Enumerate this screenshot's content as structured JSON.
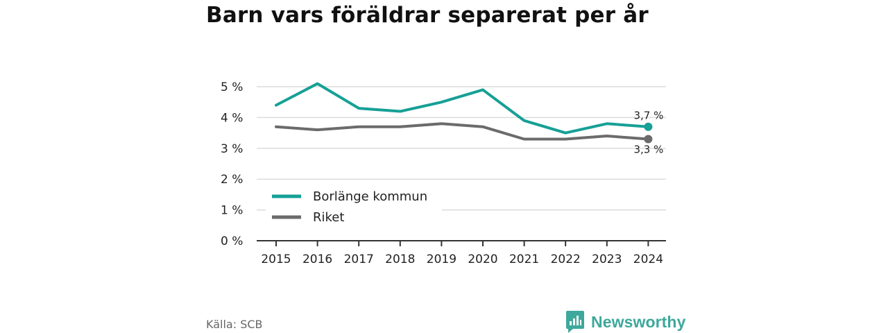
{
  "title": "Barn vars föräldrar separerat per år",
  "source": "Källa: SCB",
  "brand": {
    "name": "Newsworthy",
    "icon": "newsworthy-logo-icon",
    "color": "#3da89c"
  },
  "chart_data": {
    "type": "line",
    "title": "Barn vars föräldrar separerat per år",
    "x": [
      "2015",
      "2016",
      "2017",
      "2018",
      "2019",
      "2020",
      "2021",
      "2022",
      "2023",
      "2024"
    ],
    "series": [
      {
        "name": "Borlänge kommun",
        "color": "#16a096",
        "values": [
          4.4,
          5.1,
          4.3,
          4.2,
          4.5,
          4.9,
          3.9,
          3.5,
          3.8,
          3.7
        ],
        "end_label": "3,7 %"
      },
      {
        "name": "Riket",
        "color": "#6b6b6b",
        "values": [
          3.7,
          3.6,
          3.7,
          3.7,
          3.8,
          3.7,
          3.3,
          3.3,
          3.4,
          3.3
        ],
        "end_label": "3,3 %"
      }
    ],
    "y_ticks": [
      {
        "value": 0,
        "label": "0 %"
      },
      {
        "value": 1,
        "label": "1 %"
      },
      {
        "value": 2,
        "label": "2 %"
      },
      {
        "value": 3,
        "label": "3 %"
      },
      {
        "value": 4,
        "label": "4 %"
      },
      {
        "value": 5,
        "label": "5 %"
      }
    ],
    "ylim": [
      0,
      5
    ],
    "grid": true,
    "legend_position": "bottom-left",
    "xlabel": "",
    "ylabel": ""
  }
}
